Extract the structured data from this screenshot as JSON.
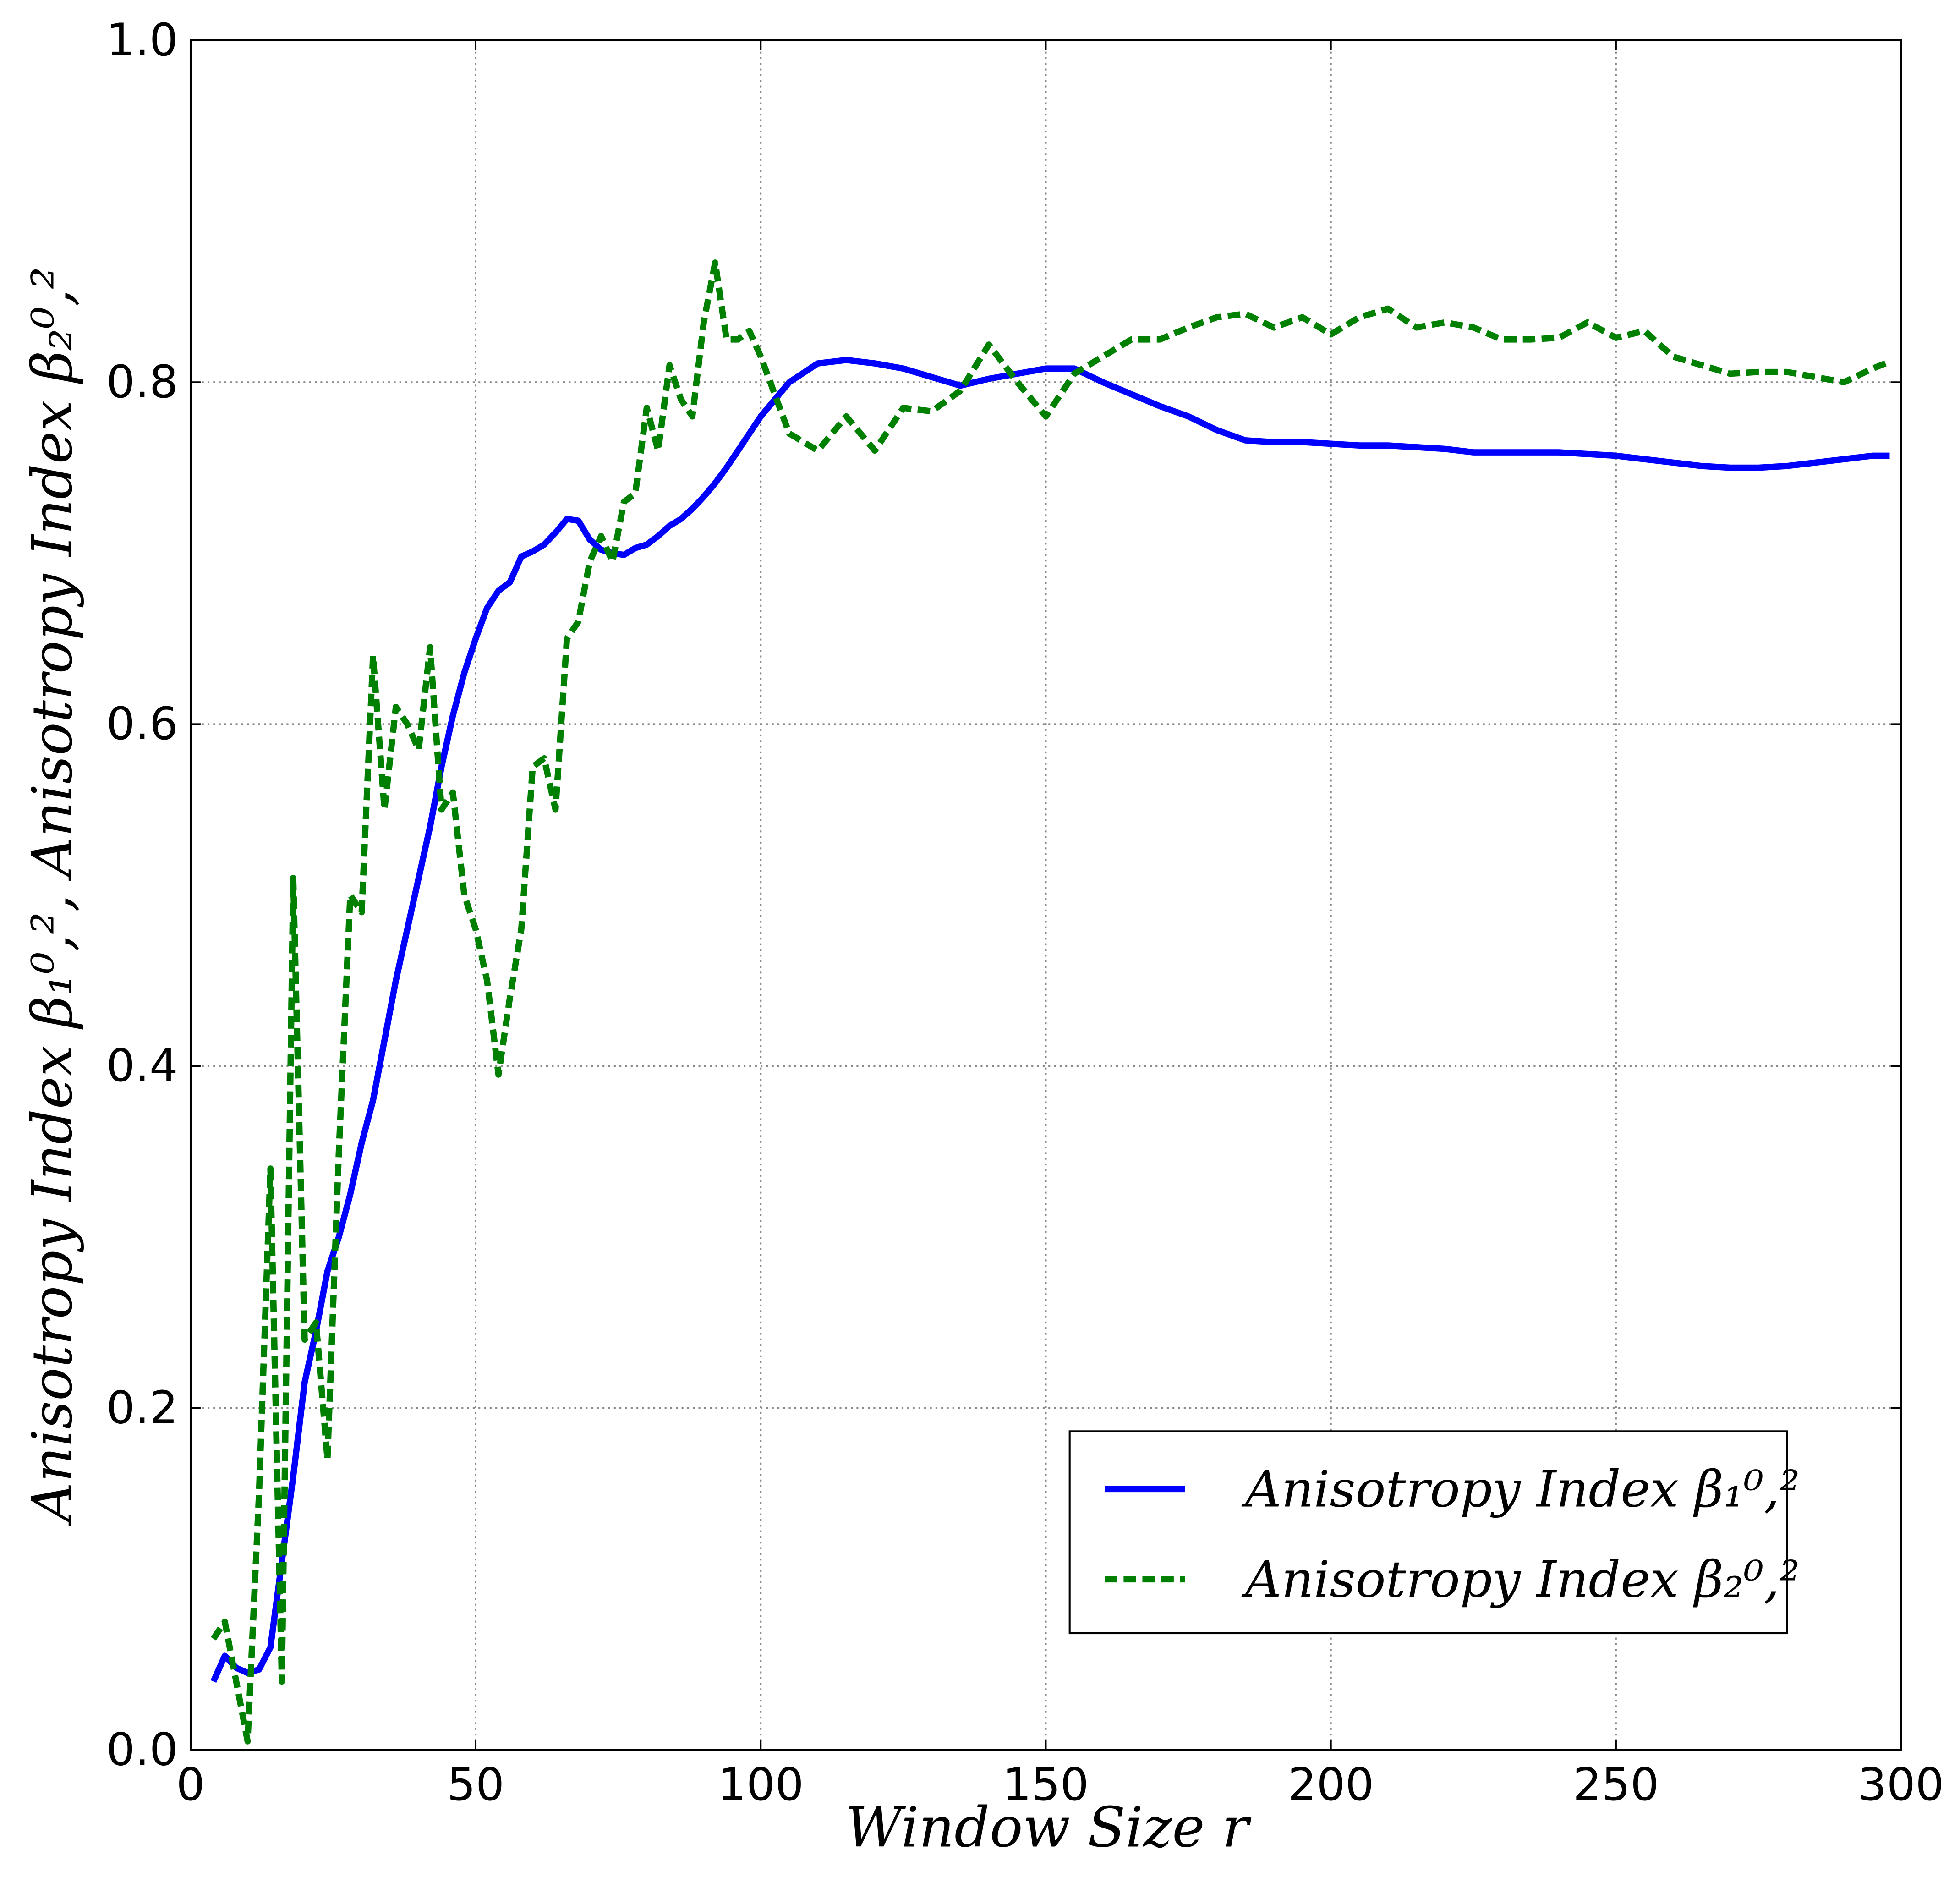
{
  "chart_data": {
    "type": "line",
    "xlabel": "Window Size r",
    "ylabel": "Anisotropy Index β₁⁰,²,  Anisotropy Index β₂⁰,²",
    "x": [
      4,
      6,
      8,
      10,
      12,
      14,
      16,
      18,
      20,
      22,
      24,
      26,
      28,
      30,
      32,
      34,
      36,
      38,
      40,
      42,
      44,
      46,
      48,
      50,
      52,
      54,
      56,
      58,
      60,
      62,
      64,
      66,
      68,
      70,
      72,
      74,
      76,
      78,
      80,
      82,
      84,
      86,
      88,
      90,
      92,
      94,
      96,
      98,
      100,
      105,
      110,
      115,
      120,
      125,
      130,
      135,
      140,
      145,
      150,
      155,
      160,
      165,
      170,
      175,
      180,
      185,
      190,
      195,
      200,
      205,
      210,
      215,
      220,
      225,
      230,
      235,
      240,
      245,
      250,
      255,
      260,
      265,
      270,
      275,
      280,
      285,
      290,
      295,
      298
    ],
    "series": [
      {
        "name": "Anisotropy Index β₁⁰,²",
        "color": "#0000ff",
        "dash": "solid",
        "values": [
          0.04,
          0.055,
          0.048,
          0.045,
          0.047,
          0.06,
          0.11,
          0.16,
          0.215,
          0.245,
          0.28,
          0.3,
          0.325,
          0.355,
          0.38,
          0.415,
          0.45,
          0.48,
          0.51,
          0.54,
          0.575,
          0.605,
          0.63,
          0.65,
          0.668,
          0.678,
          0.683,
          0.698,
          0.701,
          0.705,
          0.712,
          0.72,
          0.719,
          0.708,
          0.702,
          0.7,
          0.699,
          0.703,
          0.705,
          0.71,
          0.716,
          0.72,
          0.726,
          0.733,
          0.741,
          0.75,
          0.76,
          0.77,
          0.78,
          0.8,
          0.811,
          0.813,
          0.811,
          0.808,
          0.803,
          0.798,
          0.802,
          0.805,
          0.808,
          0.808,
          0.8,
          0.793,
          0.786,
          0.78,
          0.772,
          0.766,
          0.765,
          0.765,
          0.764,
          0.763,
          0.763,
          0.762,
          0.761,
          0.759,
          0.759,
          0.759,
          0.759,
          0.758,
          0.757,
          0.755,
          0.753,
          0.751,
          0.75,
          0.75,
          0.751,
          0.753,
          0.755,
          0.757,
          0.757
        ]
      },
      {
        "name": "Anisotropy Index β₂⁰,²",
        "color": "#008000",
        "dash": "dashed",
        "values": [
          0.065,
          0.075,
          0.04,
          0.005,
          0.15,
          0.34,
          0.04,
          0.51,
          0.24,
          0.25,
          0.17,
          0.35,
          0.5,
          0.49,
          0.64,
          0.55,
          0.61,
          0.6,
          0.585,
          0.645,
          0.55,
          0.56,
          0.5,
          0.48,
          0.45,
          0.395,
          0.44,
          0.48,
          0.575,
          0.58,
          0.55,
          0.65,
          0.66,
          0.695,
          0.71,
          0.695,
          0.73,
          0.735,
          0.785,
          0.76,
          0.81,
          0.79,
          0.78,
          0.835,
          0.87,
          0.825,
          0.825,
          0.83,
          0.815,
          0.77,
          0.76,
          0.78,
          0.76,
          0.785,
          0.783,
          0.795,
          0.822,
          0.8,
          0.78,
          0.805,
          0.815,
          0.825,
          0.825,
          0.832,
          0.838,
          0.84,
          0.832,
          0.838,
          0.828,
          0.838,
          0.843,
          0.832,
          0.835,
          0.832,
          0.825,
          0.825,
          0.826,
          0.835,
          0.826,
          0.83,
          0.815,
          0.81,
          0.805,
          0.806,
          0.806,
          0.803,
          0.8,
          0.808,
          0.812
        ]
      }
    ],
    "xlim": [
      0,
      300
    ],
    "xticks": [
      0,
      50,
      100,
      150,
      200,
      250,
      300
    ],
    "ylim": [
      0,
      1
    ],
    "yticks": [
      {
        "value": 0,
        "label": "0.0"
      },
      {
        "value": 0.2,
        "label": "0.2"
      },
      {
        "value": 0.4,
        "label": "0.4"
      },
      {
        "value": 0.6,
        "label": "0.6"
      },
      {
        "value": 0.8,
        "label": "0.8"
      },
      {
        "value": 1,
        "label": "1.0"
      }
    ],
    "grid": true,
    "legend": "lower right"
  }
}
